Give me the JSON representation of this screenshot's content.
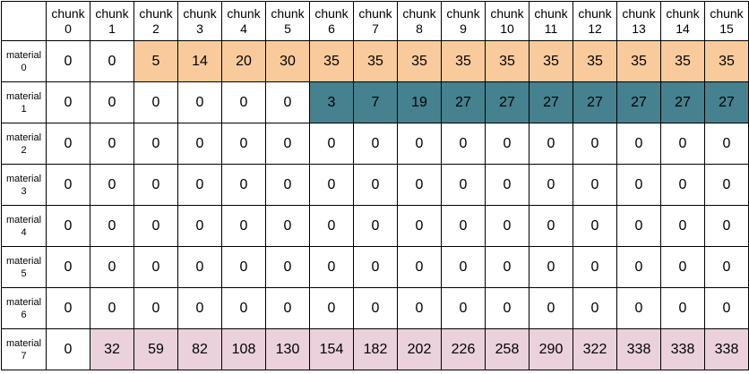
{
  "columns": [
    {
      "label": "chunk",
      "index": "0"
    },
    {
      "label": "chunk",
      "index": "1"
    },
    {
      "label": "chunk",
      "index": "2"
    },
    {
      "label": "chunk",
      "index": "3"
    },
    {
      "label": "chunk",
      "index": "4"
    },
    {
      "label": "chunk",
      "index": "5"
    },
    {
      "label": "chunk",
      "index": "6"
    },
    {
      "label": "chunk",
      "index": "7"
    },
    {
      "label": "chunk",
      "index": "8"
    },
    {
      "label": "chunk",
      "index": "9"
    },
    {
      "label": "chunk",
      "index": "10"
    },
    {
      "label": "chunk",
      "index": "11"
    },
    {
      "label": "chunk",
      "index": "12"
    },
    {
      "label": "chunk",
      "index": "13"
    },
    {
      "label": "chunk",
      "index": "14"
    },
    {
      "label": "chunk",
      "index": "15"
    }
  ],
  "highlight_colors": {
    "orange": "#f9cb9c",
    "teal": "#45818e",
    "pink": "#ead1dc"
  },
  "rows": [
    {
      "label": "material",
      "index": "0",
      "values": [
        "0",
        "0",
        "5",
        "14",
        "20",
        "30",
        "35",
        "35",
        "35",
        "35",
        "35",
        "35",
        "35",
        "35",
        "35",
        "35"
      ],
      "highlight": "orange",
      "highlight_from": 2
    },
    {
      "label": "material",
      "index": "1",
      "values": [
        "0",
        "0",
        "0",
        "0",
        "0",
        "0",
        "3",
        "7",
        "19",
        "27",
        "27",
        "27",
        "27",
        "27",
        "27",
        "27"
      ],
      "highlight": "teal",
      "highlight_from": 6
    },
    {
      "label": "material",
      "index": "2",
      "values": [
        "0",
        "0",
        "0",
        "0",
        "0",
        "0",
        "0",
        "0",
        "0",
        "0",
        "0",
        "0",
        "0",
        "0",
        "0",
        "0"
      ],
      "highlight": null,
      "highlight_from": null
    },
    {
      "label": "material",
      "index": "3",
      "values": [
        "0",
        "0",
        "0",
        "0",
        "0",
        "0",
        "0",
        "0",
        "0",
        "0",
        "0",
        "0",
        "0",
        "0",
        "0",
        "0"
      ],
      "highlight": null,
      "highlight_from": null
    },
    {
      "label": "material",
      "index": "4",
      "values": [
        "0",
        "0",
        "0",
        "0",
        "0",
        "0",
        "0",
        "0",
        "0",
        "0",
        "0",
        "0",
        "0",
        "0",
        "0",
        "0"
      ],
      "highlight": null,
      "highlight_from": null
    },
    {
      "label": "material",
      "index": "5",
      "values": [
        "0",
        "0",
        "0",
        "0",
        "0",
        "0",
        "0",
        "0",
        "0",
        "0",
        "0",
        "0",
        "0",
        "0",
        "0",
        "0"
      ],
      "highlight": null,
      "highlight_from": null
    },
    {
      "label": "material",
      "index": "6",
      "values": [
        "0",
        "0",
        "0",
        "0",
        "0",
        "0",
        "0",
        "0",
        "0",
        "0",
        "0",
        "0",
        "0",
        "0",
        "0",
        "0"
      ],
      "highlight": null,
      "highlight_from": null
    },
    {
      "label": "material",
      "index": "7",
      "values": [
        "0",
        "32",
        "59",
        "82",
        "108",
        "130",
        "154",
        "182",
        "202",
        "226",
        "258",
        "290",
        "322",
        "338",
        "338",
        "338"
      ],
      "highlight": "pink",
      "highlight_from": 1
    }
  ]
}
